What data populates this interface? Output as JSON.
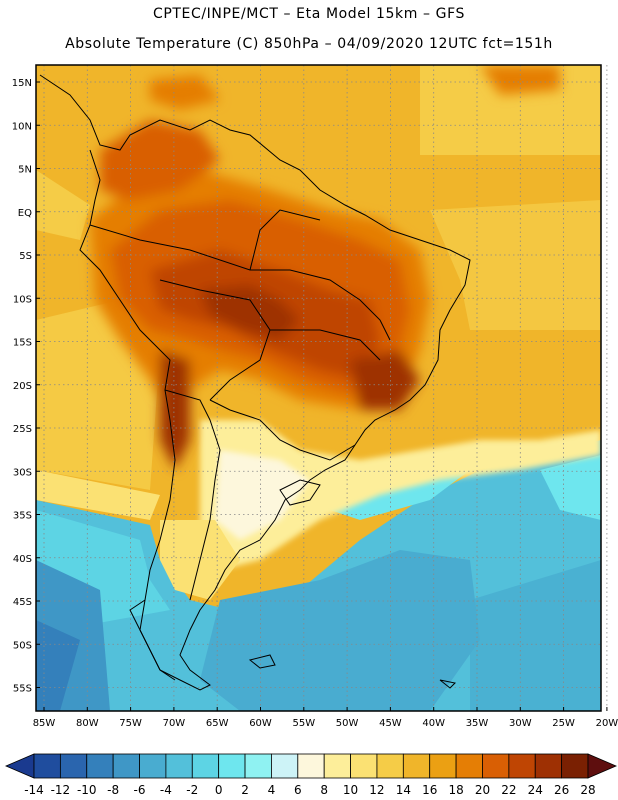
{
  "header": {
    "line1": "CPTEC/INPE/MCT –  Eta Model 15km – GFS",
    "line2": "Absolute Temperature (C) 850hPa – 04/09/2020 12UTC fct=151h"
  },
  "lat_labels": [
    "15N",
    "10N",
    "5N",
    "EQ",
    "5S",
    "10S",
    "15S",
    "20S",
    "25S",
    "30S",
    "35S",
    "40S",
    "45S",
    "50S",
    "55S"
  ],
  "lon_labels": [
    "85W",
    "80W",
    "75W",
    "70W",
    "65W",
    "60W",
    "55W",
    "50W",
    "45W",
    "40W",
    "35W",
    "30W",
    "25W",
    "20W"
  ],
  "colorbar": {
    "labels": [
      "-14",
      "-12",
      "-10",
      "-8",
      "-6",
      "-4",
      "-2",
      "0",
      "2",
      "4",
      "6",
      "8",
      "10",
      "12",
      "14",
      "16",
      "18",
      "20",
      "22",
      "24",
      "26",
      "28"
    ],
    "colors": [
      "#1a3a8f",
      "#1f4d9e",
      "#2a65ae",
      "#3480bb",
      "#3f97c6",
      "#49acd0",
      "#53c0da",
      "#5dd4e4",
      "#6ee6ee",
      "#8ff2f2",
      "#cdf3f7",
      "#fdf7dc",
      "#fdee9a",
      "#fbe173",
      "#f5cc47",
      "#f0b52a",
      "#eba013",
      "#e57e05",
      "#d95f04",
      "#bf4503",
      "#9e3003",
      "#7a2002",
      "#5e0e0e"
    ]
  }
}
